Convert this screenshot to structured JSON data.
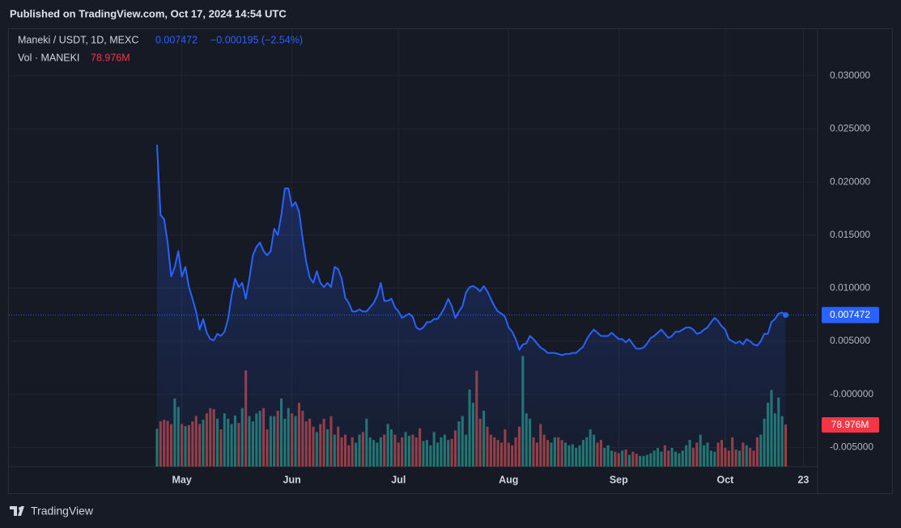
{
  "header": {
    "published": "Published on TradingView.com, Oct 17, 2024 14:54 UTC",
    "brand": "TradingView"
  },
  "chart_data": {
    "type": "line",
    "legend": {
      "symbol": "Maneki / USDT, 1D, MEXC",
      "change": "−0.000195 (−2.54%)",
      "volume_name": "Vol · MANEKI",
      "volume_value": "78.976M"
    },
    "x": [
      -7,
      -6,
      -5,
      -4,
      -3,
      -2,
      -1,
      0,
      1,
      2,
      3,
      4,
      5,
      6,
      7,
      8,
      9,
      10,
      11,
      12,
      13,
      14,
      15,
      16,
      17,
      18,
      19,
      20,
      21,
      22,
      23,
      24,
      25,
      26,
      27,
      28,
      29,
      30,
      31,
      32,
      33,
      34,
      35,
      36,
      37,
      38,
      39,
      40,
      41,
      42,
      43,
      44,
      45,
      46,
      47,
      48,
      49,
      50,
      51,
      52,
      53,
      54,
      55,
      56,
      57,
      58,
      59,
      60,
      61,
      62,
      63,
      64,
      65,
      66,
      67,
      68,
      69,
      70,
      71,
      72,
      73,
      74,
      75,
      76,
      77,
      78,
      79,
      80,
      81,
      82,
      83,
      84,
      85,
      86,
      87,
      88,
      89,
      90,
      91,
      92,
      93,
      94,
      95,
      96,
      97,
      98,
      99,
      100,
      101,
      102,
      103,
      104,
      105,
      106,
      107,
      108,
      109,
      110,
      111,
      112,
      113,
      114,
      115,
      116,
      117,
      118,
      119,
      120,
      121,
      122,
      123,
      124,
      125,
      126,
      127,
      128,
      129,
      130,
      131,
      132,
      133,
      134,
      135,
      136,
      137,
      138,
      139,
      140,
      141,
      142,
      143,
      144,
      145,
      146,
      147,
      148,
      149,
      150,
      151,
      152,
      153,
      154,
      155,
      156,
      157,
      158,
      159,
      160,
      161,
      162,
      163,
      164,
      165,
      166,
      167,
      168,
      169,
      170
    ],
    "series": [
      {
        "color": "#2962ff",
        "values": [
          0.0235,
          0.0169,
          0.0165,
          0.0143,
          0.0111,
          0.012,
          0.0135,
          0.0111,
          0.012,
          0.0101,
          0.009,
          0.0078,
          0.0061,
          0.0071,
          0.0058,
          0.0052,
          0.0051,
          0.0057,
          0.0055,
          0.0059,
          0.0071,
          0.0093,
          0.0109,
          0.0101,
          0.0105,
          0.009,
          0.0109,
          0.0131,
          0.0139,
          0.0143,
          0.0135,
          0.0131,
          0.0135,
          0.0156,
          0.015,
          0.0169,
          0.0194,
          0.0194,
          0.0177,
          0.0181,
          0.0172,
          0.0147,
          0.0125,
          0.011,
          0.0105,
          0.0116,
          0.0105,
          0.0101,
          0.0105,
          0.0101,
          0.012,
          0.0118,
          0.0109,
          0.0091,
          0.0086,
          0.0078,
          0.0078,
          0.008,
          0.0078,
          0.0078,
          0.0082,
          0.0086,
          0.0093,
          0.0105,
          0.0088,
          0.0088,
          0.009,
          0.0082,
          0.0078,
          0.0072,
          0.0074,
          0.0076,
          0.0073,
          0.0063,
          0.0061,
          0.0063,
          0.0068,
          0.0068,
          0.0071,
          0.0071,
          0.0076,
          0.0082,
          0.009,
          0.0083,
          0.0072,
          0.0078,
          0.0083,
          0.0096,
          0.0101,
          0.0102,
          0.01,
          0.0097,
          0.0102,
          0.0097,
          0.009,
          0.0083,
          0.0078,
          0.0076,
          0.0073,
          0.0063,
          0.0059,
          0.0052,
          0.0042,
          0.0047,
          0.0048,
          0.0055,
          0.0052,
          0.0048,
          0.0044,
          0.0042,
          0.0039,
          0.0039,
          0.0039,
          0.0038,
          0.0037,
          0.0038,
          0.0038,
          0.0039,
          0.0039,
          0.0042,
          0.0045,
          0.0052,
          0.0057,
          0.0061,
          0.0058,
          0.0055,
          0.0055,
          0.0055,
          0.0058,
          0.0055,
          0.0052,
          0.0052,
          0.0049,
          0.0052,
          0.0047,
          0.0043,
          0.0043,
          0.0044,
          0.0048,
          0.0053,
          0.0055,
          0.0058,
          0.0061,
          0.0057,
          0.0053,
          0.0055,
          0.0059,
          0.0059,
          0.0061,
          0.0063,
          0.0063,
          0.0061,
          0.0057,
          0.0058,
          0.0061,
          0.0063,
          0.0068,
          0.0072,
          0.0069,
          0.0064,
          0.0061,
          0.0052,
          0.005,
          0.0048,
          0.005,
          0.0047,
          0.0052,
          0.005,
          0.0047,
          0.0046,
          0.005,
          0.0057,
          0.0057,
          0.0068,
          0.0071,
          0.0076,
          0.0077,
          0.007472
        ]
      }
    ],
    "volume": {
      "up_color": "#22786c",
      "down_color": "#9c3d3e",
      "values": [
        71,
        85,
        88,
        86,
        80,
        128,
        112,
        80,
        76,
        78,
        85,
        95,
        80,
        88,
        100,
        110,
        108,
        90,
        70,
        100,
        90,
        80,
        96,
        82,
        110,
        181,
        95,
        85,
        100,
        105,
        110,
        70,
        95,
        95,
        105,
        128,
        90,
        110,
        100,
        95,
        120,
        105,
        85,
        90,
        75,
        65,
        80,
        90,
        70,
        95,
        60,
        75,
        55,
        60,
        40,
        55,
        45,
        60,
        65,
        90,
        55,
        50,
        45,
        55,
        60,
        80,
        70,
        60,
        45,
        55,
        65,
        58,
        60,
        55,
        72,
        48,
        50,
        40,
        65,
        45,
        55,
        60,
        50,
        52,
        68,
        85,
        95,
        60,
        145,
        120,
        180,
        90,
        105,
        75,
        60,
        55,
        50,
        45,
        70,
        45,
        40,
        55,
        75,
        208,
        100,
        90,
        55,
        45,
        80,
        60,
        50,
        45,
        55,
        55,
        50,
        45,
        40,
        42,
        35,
        40,
        50,
        55,
        70,
        60,
        45,
        50,
        35,
        40,
        30,
        28,
        25,
        30,
        32,
        22,
        28,
        24,
        20,
        20,
        22,
        25,
        30,
        35,
        28,
        40,
        30,
        35,
        28,
        25,
        30,
        40,
        50,
        35,
        45,
        60,
        40,
        45,
        30,
        28,
        45,
        50,
        35,
        30,
        55,
        32,
        30,
        45,
        40,
        35,
        30,
        55,
        60,
        90,
        120,
        144,
        100,
        130,
        95,
        78.976
      ]
    },
    "xlim": [
      -48.7,
      179
    ],
    "xticks": [
      {
        "value": 0,
        "label": "May"
      },
      {
        "value": 31,
        "label": "Jun"
      },
      {
        "value": 61,
        "label": "Jul"
      },
      {
        "value": 92,
        "label": "Aug"
      },
      {
        "value": 123,
        "label": "Sep"
      },
      {
        "value": 153,
        "label": "Oct"
      },
      {
        "value": 175,
        "label": "23"
      }
    ],
    "ylim": [
      -0.0068,
      0.0344
    ],
    "yticks": [
      {
        "value": 0.03,
        "label": "0.030000"
      },
      {
        "value": 0.025,
        "label": "0.025000"
      },
      {
        "value": 0.02,
        "label": "0.020000"
      },
      {
        "value": 0.015,
        "label": "0.015000"
      },
      {
        "value": 0.01,
        "label": "0.010000"
      },
      {
        "value": 0.005,
        "label": "0.005000"
      },
      {
        "value": 0,
        "label": "-0.000000"
      },
      {
        "value": -0.005,
        "label": "-0.005000"
      }
    ],
    "y2lim": [
      0,
      823
    ],
    "grid": true
  }
}
